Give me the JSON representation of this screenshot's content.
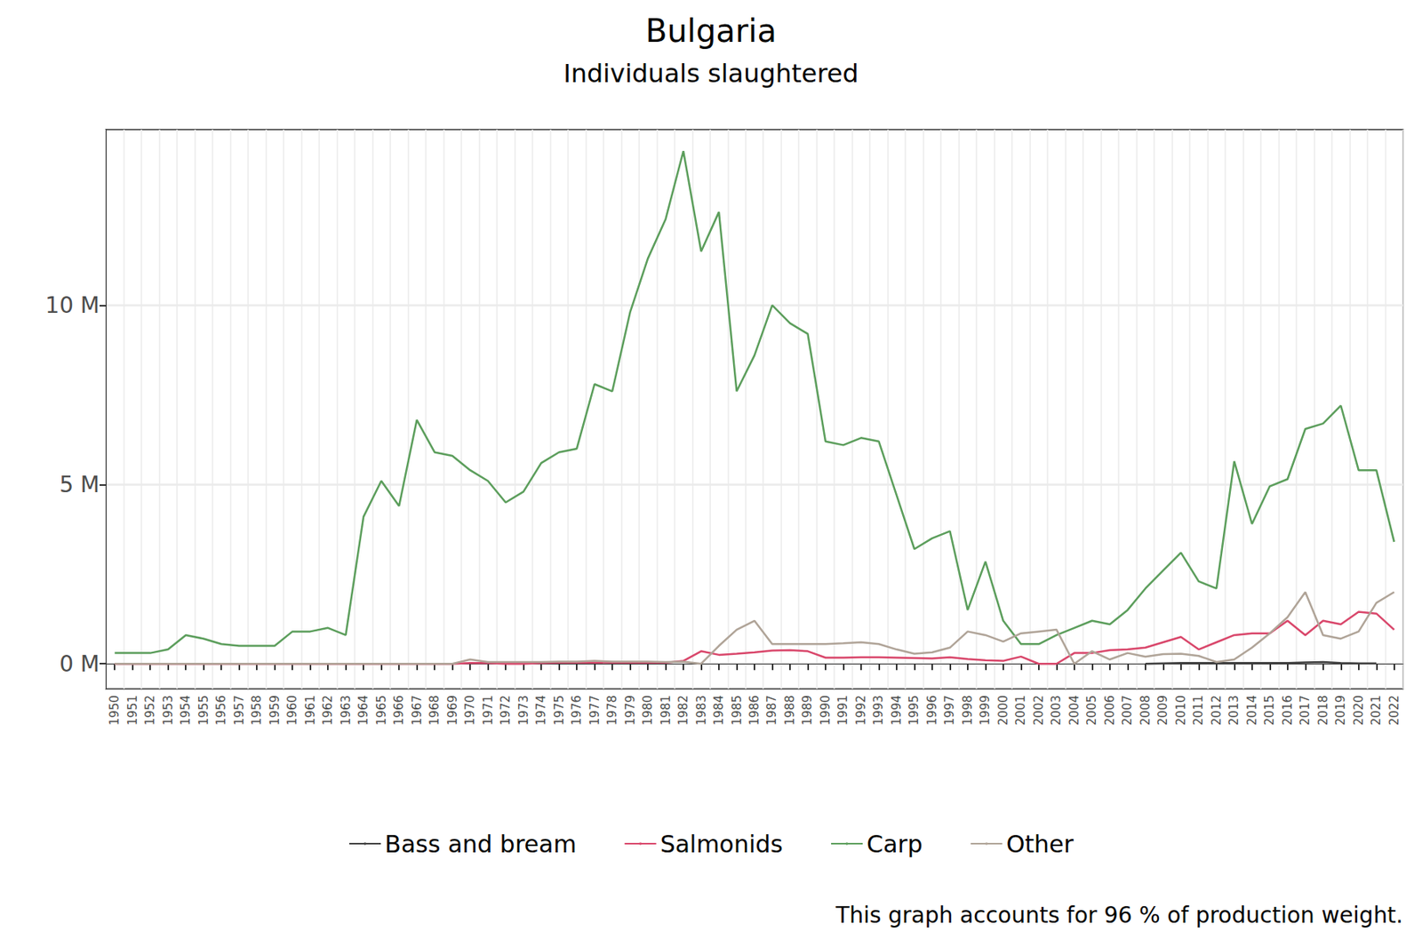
{
  "chart_data": {
    "type": "line",
    "title": "Bulgaria",
    "subtitle": "Individuals slaughtered",
    "caption": "This graph accounts for 96 % of production weight.",
    "categories": [
      "1950",
      "1951",
      "1952",
      "1953",
      "1954",
      "1955",
      "1956",
      "1957",
      "1958",
      "1959",
      "1960",
      "1961",
      "1962",
      "1963",
      "1964",
      "1965",
      "1966",
      "1967",
      "1968",
      "1969",
      "1970",
      "1971",
      "1972",
      "1973",
      "1974",
      "1975",
      "1976",
      "1977",
      "1978",
      "1979",
      "1980",
      "1981",
      "1982",
      "1983",
      "1984",
      "1985",
      "1986",
      "1987",
      "1988",
      "1989",
      "1990",
      "1991",
      "1992",
      "1993",
      "1994",
      "1995",
      "1996",
      "1997",
      "1998",
      "1999",
      "2000",
      "2001",
      "2002",
      "2003",
      "2004",
      "2005",
      "2006",
      "2007",
      "2008",
      "2009",
      "2010",
      "2011",
      "2012",
      "2013",
      "2014",
      "2015",
      "2016",
      "2017",
      "2018",
      "2019",
      "2020",
      "2021",
      "2022"
    ],
    "series": [
      {
        "name": "Bass and bream",
        "color": "#404040",
        "values": [
          null,
          null,
          null,
          null,
          null,
          null,
          null,
          null,
          null,
          null,
          null,
          null,
          null,
          null,
          null,
          null,
          null,
          null,
          null,
          null,
          null,
          null,
          null,
          null,
          null,
          null,
          null,
          null,
          null,
          null,
          null,
          null,
          null,
          null,
          null,
          null,
          null,
          null,
          null,
          null,
          null,
          null,
          null,
          null,
          null,
          null,
          null,
          null,
          null,
          null,
          null,
          null,
          null,
          null,
          null,
          null,
          null,
          null,
          0.0,
          0.01,
          0.02,
          0.02,
          0.02,
          0.02,
          0.02,
          0.02,
          0.02,
          0.04,
          0.05,
          0.02,
          0.01,
          0.01,
          null
        ]
      },
      {
        "name": "Salmonids",
        "color": "#d9476b",
        "values": [
          0,
          0,
          0,
          0,
          0,
          0,
          0,
          0,
          0,
          0,
          0,
          0,
          0,
          0,
          0,
          0,
          0,
          0,
          0,
          0,
          0.02,
          0.02,
          0.0,
          0.0,
          0.02,
          0.03,
          0.03,
          0.04,
          0.03,
          0.03,
          0.03,
          0.03,
          0.08,
          0.35,
          0.25,
          0.28,
          0.32,
          0.37,
          0.38,
          0.35,
          0.17,
          0.17,
          0.18,
          0.18,
          0.17,
          0.16,
          0.15,
          0.18,
          0.13,
          0.1,
          0.08,
          0.2,
          0.0,
          0.0,
          0.3,
          0.3,
          0.38,
          0.4,
          0.45,
          0.6,
          0.75,
          0.4,
          0.6,
          0.8,
          0.85,
          0.85,
          1.2,
          0.8,
          1.2,
          1.1,
          1.45,
          1.4,
          0.95
        ]
      },
      {
        "name": "Carp",
        "color": "#5c9e5c",
        "values": [
          0.3,
          0.3,
          0.3,
          0.4,
          0.8,
          0.7,
          0.55,
          0.5,
          0.5,
          0.5,
          0.9,
          0.9,
          1.0,
          0.8,
          4.1,
          5.1,
          4.4,
          6.8,
          5.9,
          5.8,
          5.4,
          5.1,
          4.5,
          4.8,
          5.6,
          5.9,
          6.0,
          7.8,
          7.6,
          9.8,
          11.3,
          12.4,
          14.3,
          11.5,
          12.6,
          7.6,
          8.6,
          10.0,
          9.5,
          9.2,
          6.2,
          6.1,
          6.3,
          6.2,
          4.7,
          3.2,
          3.5,
          3.7,
          1.5,
          2.85,
          1.2,
          0.55,
          0.55,
          0.8,
          1.0,
          1.2,
          1.1,
          1.5,
          2.1,
          2.6,
          3.1,
          2.3,
          2.1,
          5.65,
          3.9,
          4.95,
          5.15,
          6.55,
          6.7,
          7.2,
          5.4,
          5.4,
          3.4
        ]
      },
      {
        "name": "Other",
        "color": "#b0a498",
        "values": [
          0,
          0,
          0,
          0,
          0,
          0,
          0,
          0,
          0,
          0,
          0,
          0,
          0,
          0,
          0,
          0,
          0,
          0,
          0,
          0,
          0.12,
          0.05,
          0.05,
          0.05,
          0.05,
          0.06,
          0.06,
          0.08,
          0.06,
          0.06,
          0.06,
          0.05,
          0.06,
          0.0,
          0.5,
          0.95,
          1.2,
          0.55,
          0.55,
          0.55,
          0.55,
          0.57,
          0.6,
          0.55,
          0.4,
          0.28,
          0.32,
          0.45,
          0.9,
          0.8,
          0.62,
          0.85,
          0.9,
          0.95,
          0.0,
          0.35,
          0.12,
          0.3,
          0.2,
          0.27,
          0.28,
          0.22,
          0.05,
          0.12,
          0.45,
          0.85,
          1.3,
          2.0,
          0.8,
          0.7,
          0.9,
          1.7,
          2.0
        ]
      }
    ],
    "ylim": [
      -0.7,
      14.9
    ],
    "yticks": [
      {
        "value": 0,
        "label": "0 M"
      },
      {
        "value": 5,
        "label": "5 M"
      },
      {
        "value": 10,
        "label": "10 M"
      }
    ],
    "grid": true,
    "legend": "bottom"
  }
}
